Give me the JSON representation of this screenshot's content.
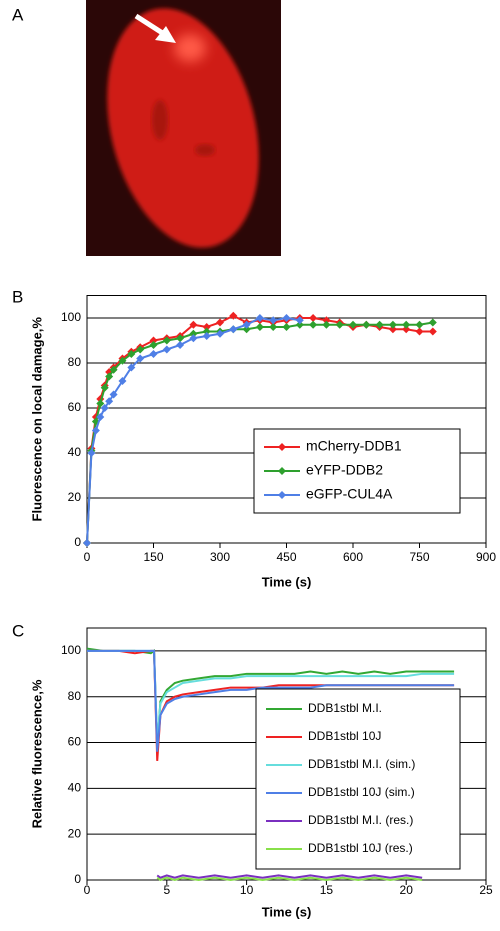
{
  "panel_labels": [
    "A",
    "B",
    "C"
  ],
  "chart_data": [
    {
      "type": "line",
      "markers": true,
      "grid": true,
      "legend": "center right",
      "xlabel": "Time (s)",
      "ylabel": "Fluorescence on local damage,%",
      "xlim": [
        0,
        900
      ],
      "xticks": [
        0,
        150,
        300,
        450,
        600,
        750,
        900
      ],
      "ylim": [
        0,
        110
      ],
      "yticks": [
        0,
        20,
        40,
        60,
        80,
        100
      ],
      "x": [
        0,
        10,
        20,
        30,
        40,
        50,
        60,
        80,
        100,
        120,
        150,
        180,
        210,
        240,
        270,
        300,
        330,
        360,
        390,
        420,
        450,
        480,
        510,
        540,
        570,
        600,
        630,
        660,
        690,
        720,
        750,
        780
      ],
      "series": [
        {
          "name": "mCherry-DDB1",
          "color": "#ee2222",
          "values": [
            0,
            42,
            56,
            64,
            70,
            76,
            78,
            82,
            85,
            87,
            90,
            91,
            92,
            97,
            96,
            98,
            101,
            98,
            99,
            98,
            99,
            100,
            100,
            99,
            98,
            96,
            97,
            96,
            95,
            95,
            94,
            94
          ]
        },
        {
          "name": "eYFP-DDB2",
          "color": "#2ea02e",
          "values": [
            0,
            41,
            54,
            62,
            69,
            74,
            77,
            81,
            84,
            86,
            88,
            90,
            91,
            93,
            94,
            94,
            95,
            95,
            96,
            96,
            96,
            97,
            97,
            97,
            97,
            97,
            97,
            97,
            97,
            97,
            97,
            98
          ]
        },
        {
          "name": "eGFP-CUL4A",
          "color": "#4f7fe6",
          "values": [
            0,
            40,
            50,
            56,
            60,
            63,
            66,
            72,
            78,
            82,
            84,
            86,
            88,
            91,
            92,
            93,
            95,
            97,
            100,
            99,
            100,
            99,
            null,
            null,
            null,
            null,
            null,
            null,
            null,
            null,
            null,
            null
          ]
        }
      ]
    },
    {
      "type": "line",
      "markers": false,
      "grid": true,
      "legend": "center right",
      "xlabel": "Time (s)",
      "ylabel": "Relative fluorescence,%",
      "xlim": [
        0,
        25
      ],
      "xticks": [
        0,
        5,
        10,
        15,
        20,
        25
      ],
      "ylim": [
        0,
        110
      ],
      "yticks": [
        0,
        20,
        40,
        60,
        80,
        100
      ],
      "x": [
        0,
        1,
        2,
        3,
        4,
        4.2,
        4.4,
        4.6,
        5,
        5.5,
        6,
        7,
        8,
        9,
        10,
        11,
        12,
        13,
        14,
        15,
        16,
        17,
        18,
        19,
        20,
        21,
        22,
        23
      ],
      "series": [
        {
          "name": "DDB1stbl M.I.",
          "color": "#33a833",
          "values": [
            101,
            100,
            100,
            100,
            99,
            100,
            58,
            78,
            83,
            86,
            87,
            88,
            89,
            89,
            90,
            90,
            90,
            90,
            91,
            90,
            91,
            90,
            91,
            90,
            91,
            91,
            91,
            91
          ]
        },
        {
          "name": "DDB1stbl 10J",
          "color": "#ee2222",
          "values": [
            100,
            100,
            100,
            99,
            100,
            100,
            52,
            72,
            78,
            80,
            81,
            82,
            83,
            84,
            84,
            84,
            85,
            85,
            85,
            85,
            85,
            85,
            85,
            85,
            85,
            85,
            85,
            85
          ]
        },
        {
          "name": "DDB1stbl M.I. (sim.)",
          "color": "#66dddd",
          "values": [
            100,
            100,
            100,
            100,
            100,
            100,
            60,
            77,
            82,
            84,
            86,
            87,
            88,
            88,
            89,
            89,
            89,
            89,
            89,
            89,
            89,
            89,
            89,
            89,
            89,
            90,
            90,
            90
          ]
        },
        {
          "name": "DDB1stbl 10J (sim.)",
          "color": "#4f7fe6",
          "values": [
            100,
            100,
            100,
            100,
            100,
            100,
            56,
            72,
            77,
            79,
            80,
            81,
            82,
            83,
            83,
            84,
            84,
            84,
            84,
            85,
            85,
            85,
            85,
            85,
            85,
            85,
            85,
            85
          ]
        },
        {
          "name": "DDB1stbl M.I. (res.)",
          "color": "#7a2fbf",
          "values": [
            null,
            null,
            null,
            null,
            null,
            null,
            2,
            1,
            2,
            1,
            2,
            1,
            2,
            1,
            2,
            1,
            2,
            1,
            2,
            1,
            2,
            1,
            2,
            1,
            2,
            1,
            null,
            null
          ]
        },
        {
          "name": "DDB1stbl 10J (res.)",
          "color": "#88e04a",
          "values": [
            null,
            null,
            null,
            null,
            null,
            null,
            1,
            0,
            1,
            0,
            1,
            0,
            1,
            0,
            1,
            0,
            1,
            0,
            1,
            0,
            1,
            0,
            1,
            0,
            1,
            0,
            null,
            null
          ]
        }
      ]
    }
  ]
}
